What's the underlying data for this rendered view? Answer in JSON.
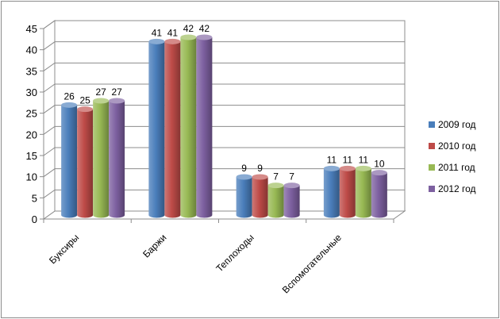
{
  "chart_data": {
    "type": "bar",
    "title": "",
    "xlabel": "",
    "ylabel": "",
    "categories": [
      "Буксиры",
      "Баржи",
      "Теплоходы",
      "Вспомогательные"
    ],
    "ylim": [
      0,
      45
    ],
    "yticks": [
      0,
      5,
      10,
      15,
      20,
      25,
      30,
      35,
      40,
      45
    ],
    "grid": true,
    "legend_position": "right",
    "series": [
      {
        "name": "2009 год",
        "color": "#4a7ebb",
        "values": [
          26,
          41,
          9,
          11
        ]
      },
      {
        "name": "2010 год",
        "color": "#be4b48",
        "values": [
          25,
          41,
          9,
          11
        ]
      },
      {
        "name": "2011 год",
        "color": "#98b954",
        "values": [
          27,
          42,
          7,
          11
        ]
      },
      {
        "name": "2012 год",
        "color": "#7d60a0",
        "values": [
          27,
          42,
          7,
          10
        ]
      }
    ]
  }
}
